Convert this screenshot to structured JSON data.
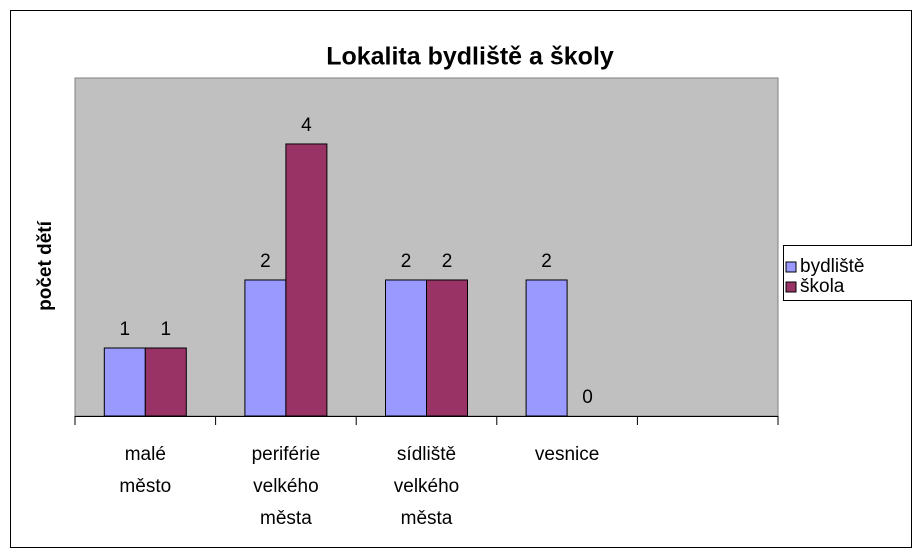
{
  "chart_data": {
    "type": "bar",
    "title": "Lokalita bydliště a školy",
    "y_label": "počet dětí",
    "categories": [
      "malé město",
      "periférie velkého města",
      "sídliště velkého města",
      "vesnice",
      null
    ],
    "series": [
      {
        "name": "bydliště",
        "color": "#9999ff",
        "values": [
          1,
          2,
          2,
          2,
          null
        ]
      },
      {
        "name": "škola",
        "color": "#993366",
        "values": [
          1,
          4,
          2,
          0,
          null
        ]
      }
    ],
    "ylim": [
      0,
      4.97
    ],
    "plot_background": "#c0c0c0",
    "legend": "right"
  }
}
